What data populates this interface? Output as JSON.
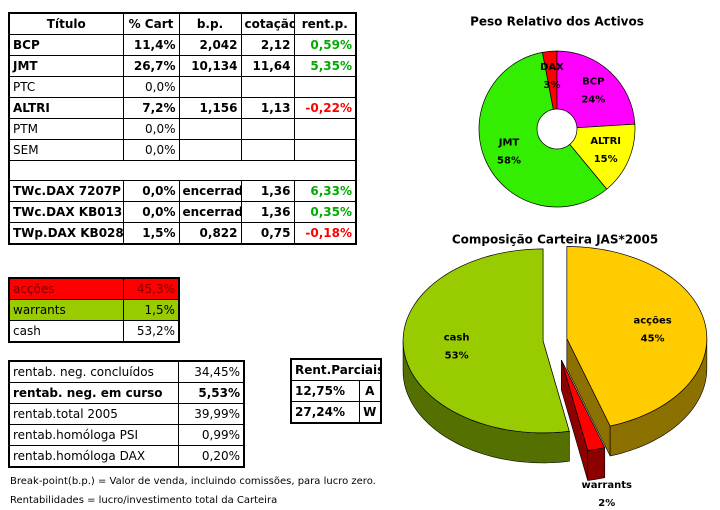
{
  "main_table": {
    "header": [
      "Título",
      "% Cart",
      "b.p.",
      "cotação",
      "rent.p."
    ],
    "rows": [
      [
        "BCP",
        "11,4%",
        "2,042",
        "2,12",
        "0,59%"
      ],
      [
        "JMT",
        "26,7%",
        "10,134",
        "11,64",
        "5,35%"
      ],
      [
        "PTC",
        "0,0%",
        null,
        null,
        null
      ],
      [
        "ALTRI",
        "7,2%",
        "1,156",
        "1,13",
        "-0,22%"
      ],
      [
        "PTM",
        "0,0%",
        null,
        null,
        null
      ],
      [
        "SEM",
        "0,0%",
        null,
        null,
        null
      ]
    ],
    "warrant_rows": [
      [
        "TWc.DAX 7207P",
        "0,0%",
        "encerrado",
        "1,36",
        "6,33%"
      ],
      [
        "TWc.DAX KB013",
        "0,0%",
        "encerrado",
        "1,36",
        "0,35%"
      ],
      [
        "TWp.DAX KB028",
        "1,5%",
        "0,822",
        "0,75",
        "-0,18%"
      ]
    ]
  },
  "allocation_table": {
    "rows": [
      [
        "acções",
        "45,3%"
      ],
      [
        "warrants",
        "1,5%"
      ],
      [
        "cash",
        "53,2%"
      ]
    ]
  },
  "returns_table": {
    "rows": [
      [
        "rentab. neg. concluídos",
        "34,45%"
      ],
      [
        "rentab. neg. em curso",
        "5,53%"
      ],
      [
        "rentab.total 2005",
        "39,99%"
      ],
      [
        "rentab.homóloga PSI",
        "0,99%"
      ],
      [
        "rentab.homóloga DAX",
        "0,20%"
      ]
    ]
  },
  "partial_table": {
    "header": "Rent.Parciais",
    "rows": [
      [
        "12,75%",
        "A"
      ],
      [
        "27,24%",
        "W"
      ]
    ]
  },
  "notes": [
    "Break-point(b.p.) = Valor de venda, incluindo comissões, para lucro zero.",
    "Rentabilidades = lucro/investimento total da Carteira"
  ],
  "chart_data": [
    {
      "type": "pie",
      "donut": true,
      "title": "Peso Relativo dos Activos",
      "categories": [
        "DAX",
        "BCP",
        "ALTRI",
        "JMT"
      ],
      "values": [
        3,
        24,
        15,
        58
      ],
      "value_labels": [
        "3%",
        "24%",
        "15%",
        "58%"
      ],
      "colors": [
        "#ff0000",
        "#ff00ff",
        "#ffff00",
        "#33ee00"
      ]
    },
    {
      "type": "pie",
      "three_d": true,
      "title": "Composição Carteira JAS*2005",
      "categories": [
        "acções",
        "warrants",
        "cash"
      ],
      "values": [
        45,
        2,
        53
      ],
      "value_labels": [
        "45%",
        "2%",
        "53%"
      ],
      "colors": [
        "#ffcc00",
        "#ff0000",
        "#99cc00"
      ]
    }
  ]
}
